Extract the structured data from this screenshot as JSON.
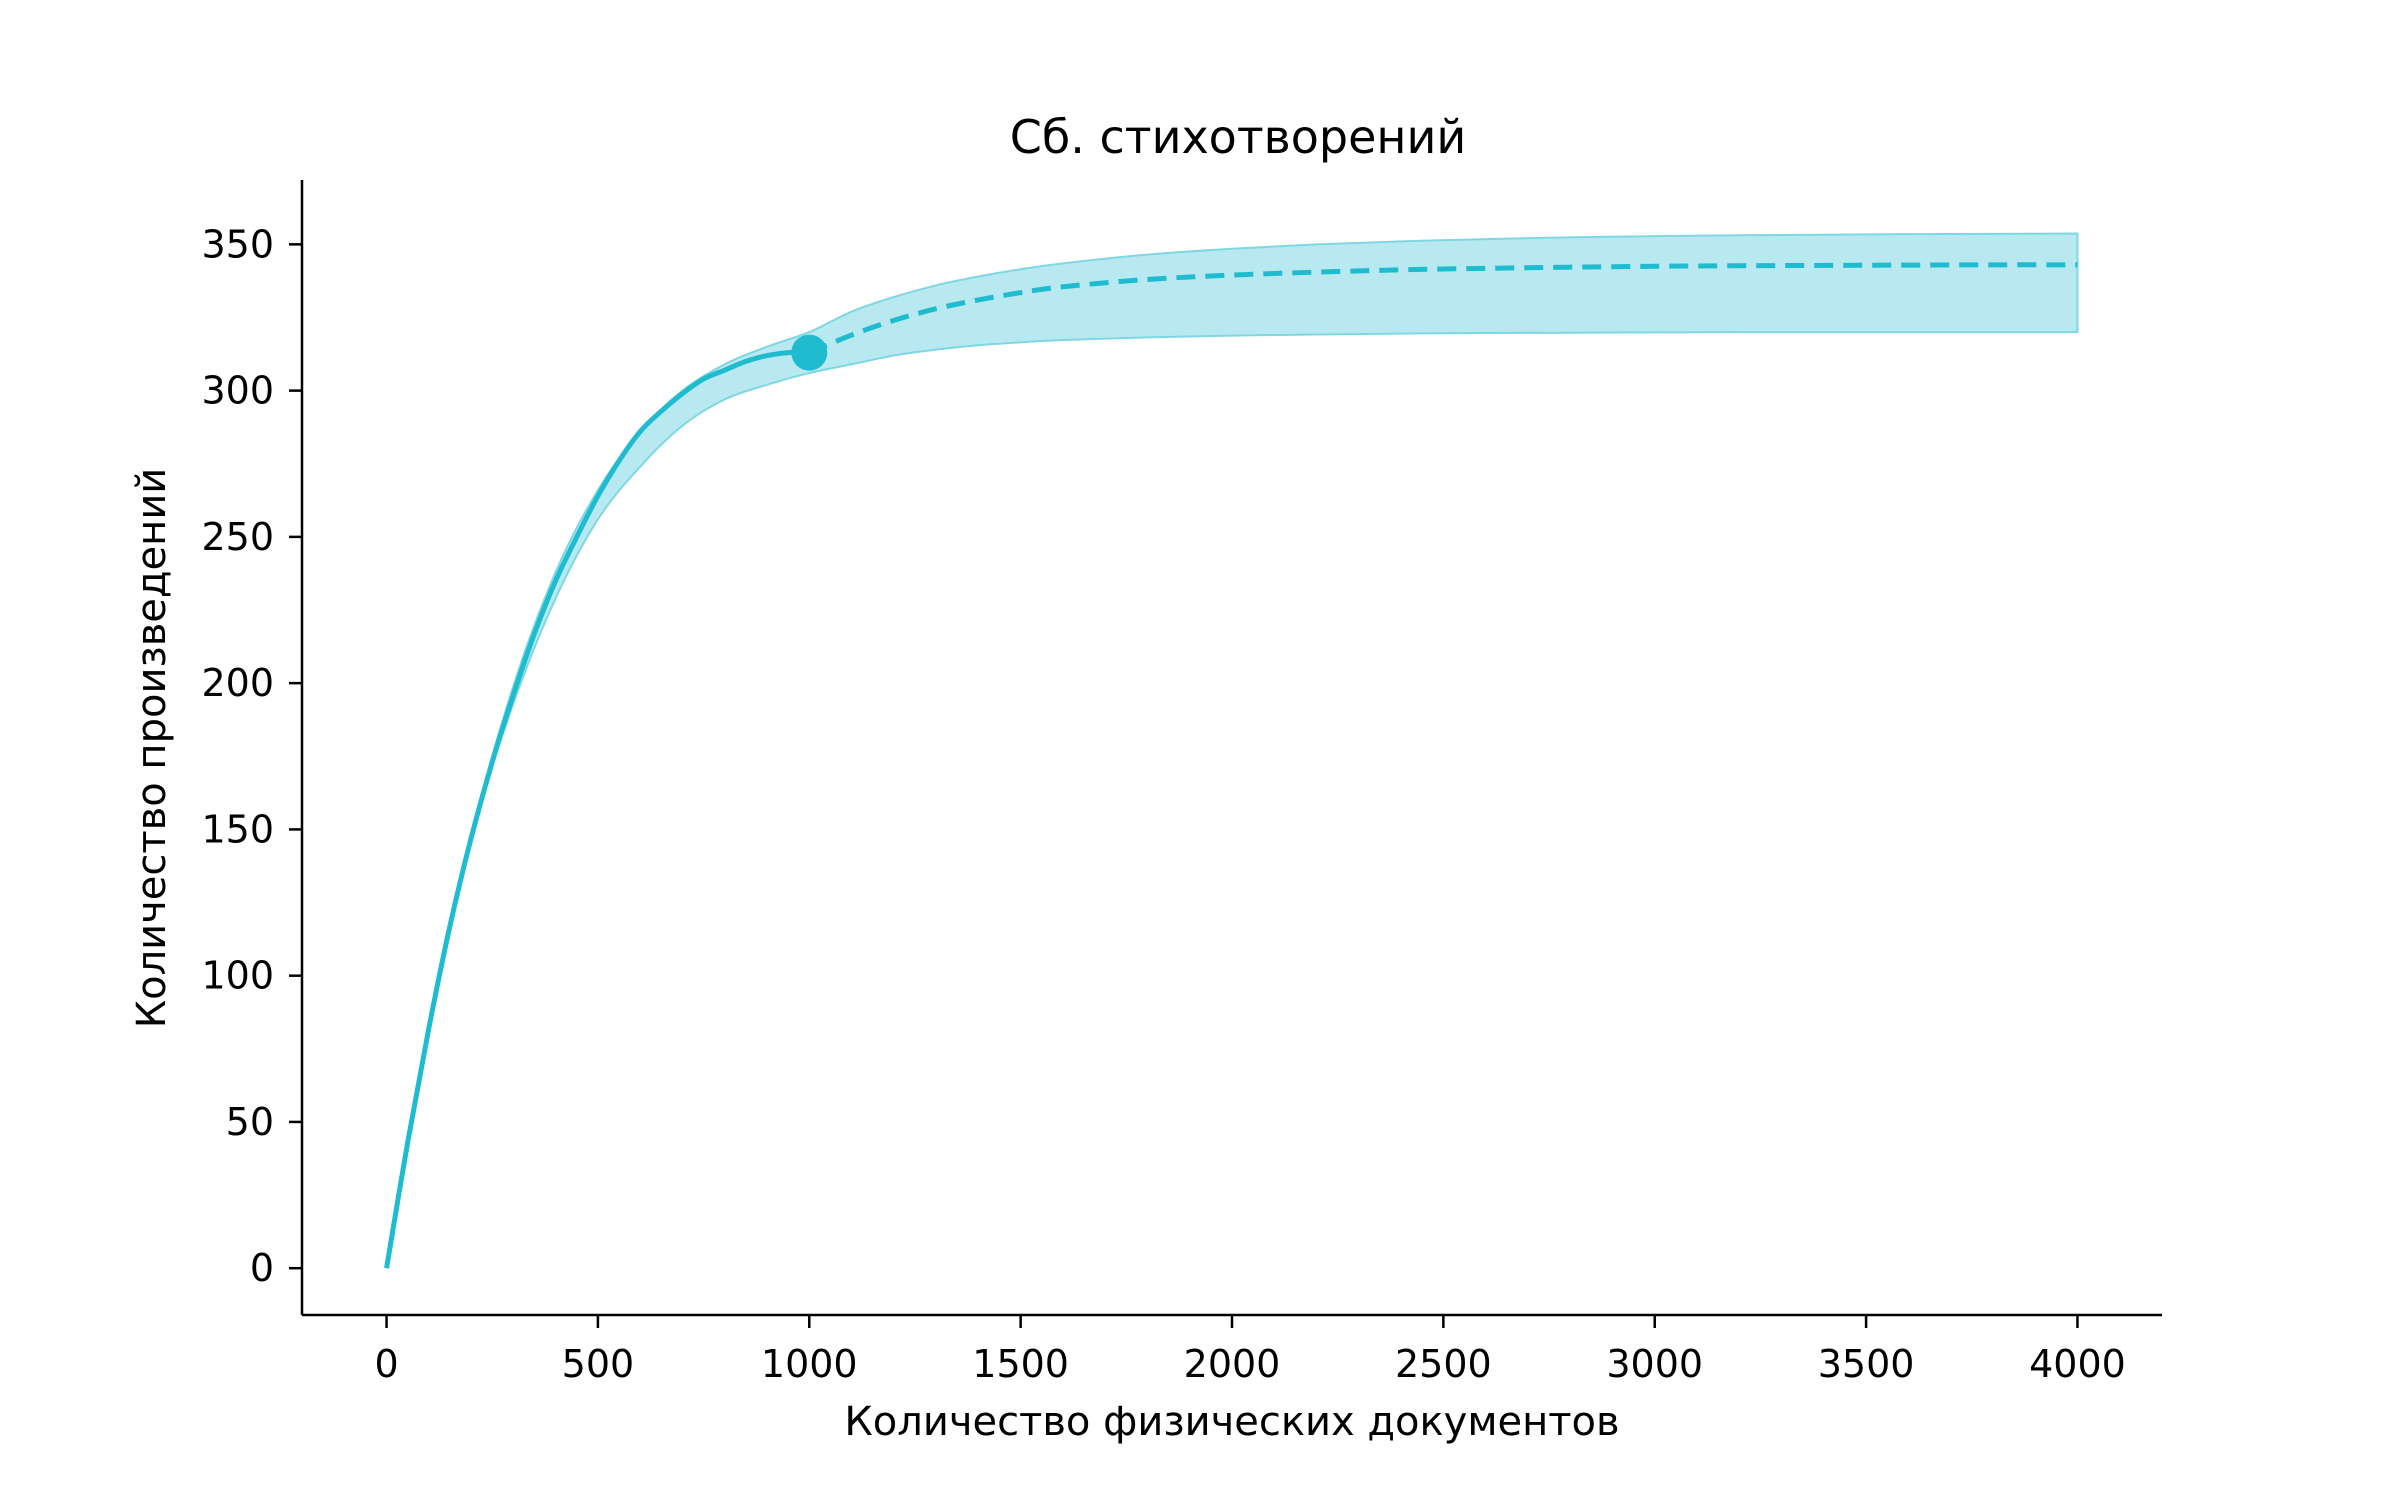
{
  "chart_data": {
    "type": "line",
    "title": "Сб. стихотворений",
    "xlabel": "Количество физических документов",
    "ylabel": "Количество произведений",
    "xlim": [
      -200,
      4200
    ],
    "ylim": [
      -16,
      372
    ],
    "xticks": [
      0,
      500,
      1000,
      1500,
      2000,
      2500,
      3000,
      3500,
      4000
    ],
    "yticks": [
      0,
      50,
      100,
      150,
      200,
      250,
      300,
      350
    ],
    "xtick_labels": [
      "0",
      "500",
      "1000",
      "1500",
      "2000",
      "2500",
      "3000",
      "3500",
      "4000"
    ],
    "ytick_labels": [
      "0",
      "50",
      "100",
      "150",
      "200",
      "250",
      "300",
      "350"
    ],
    "grid": false,
    "colors": {
      "line": "#1fbccf",
      "band": "#a6e4ec",
      "band_edge": "#7fd7e2"
    },
    "observed": {
      "x": [
        0,
        50,
        100,
        150,
        200,
        250,
        300,
        350,
        400,
        450,
        500,
        550,
        600,
        650,
        700,
        750,
        800,
        850,
        900,
        950,
        1000
      ],
      "y": [
        0,
        43,
        82,
        117,
        147,
        173,
        196,
        217,
        235,
        250,
        264,
        276,
        286,
        293,
        299,
        304,
        307,
        310,
        312,
        313,
        313
      ]
    },
    "extrapolated": {
      "x": [
        1000,
        1100,
        1200,
        1300,
        1400,
        1500,
        1600,
        1800,
        2000,
        2200,
        2400,
        2600,
        2800,
        3000,
        3200,
        3400,
        3600,
        3800,
        4000
      ],
      "y": [
        313,
        319,
        324,
        328,
        331,
        333.5,
        335.5,
        338,
        339.5,
        340.5,
        341.3,
        341.8,
        342.2,
        342.5,
        342.7,
        342.8,
        342.9,
        343,
        343
      ]
    },
    "band": {
      "x": [
        0,
        100,
        200,
        300,
        400,
        500,
        600,
        700,
        800,
        900,
        1000,
        1100,
        1200,
        1300,
        1400,
        1500,
        1600,
        1800,
        2000,
        2200,
        2400,
        2600,
        2800,
        3000,
        3200,
        3400,
        3600,
        3800,
        4000
      ],
      "lower": [
        0,
        82,
        147,
        193,
        229,
        256,
        274,
        288,
        297,
        302,
        306,
        309,
        312,
        314,
        315.5,
        316.5,
        317.3,
        318.2,
        318.8,
        319.2,
        319.5,
        319.7,
        319.8,
        319.9,
        320,
        320,
        320,
        320,
        320
      ],
      "upper": [
        0,
        82,
        148,
        199,
        238,
        266,
        286,
        300,
        309,
        315,
        320,
        327,
        332,
        336,
        339,
        341.5,
        343.5,
        346.5,
        348.5,
        350,
        351,
        351.8,
        352.4,
        352.8,
        353.1,
        353.3,
        353.5,
        353.6,
        353.7
      ]
    },
    "marker": {
      "x": 1000,
      "y": 313
    }
  }
}
